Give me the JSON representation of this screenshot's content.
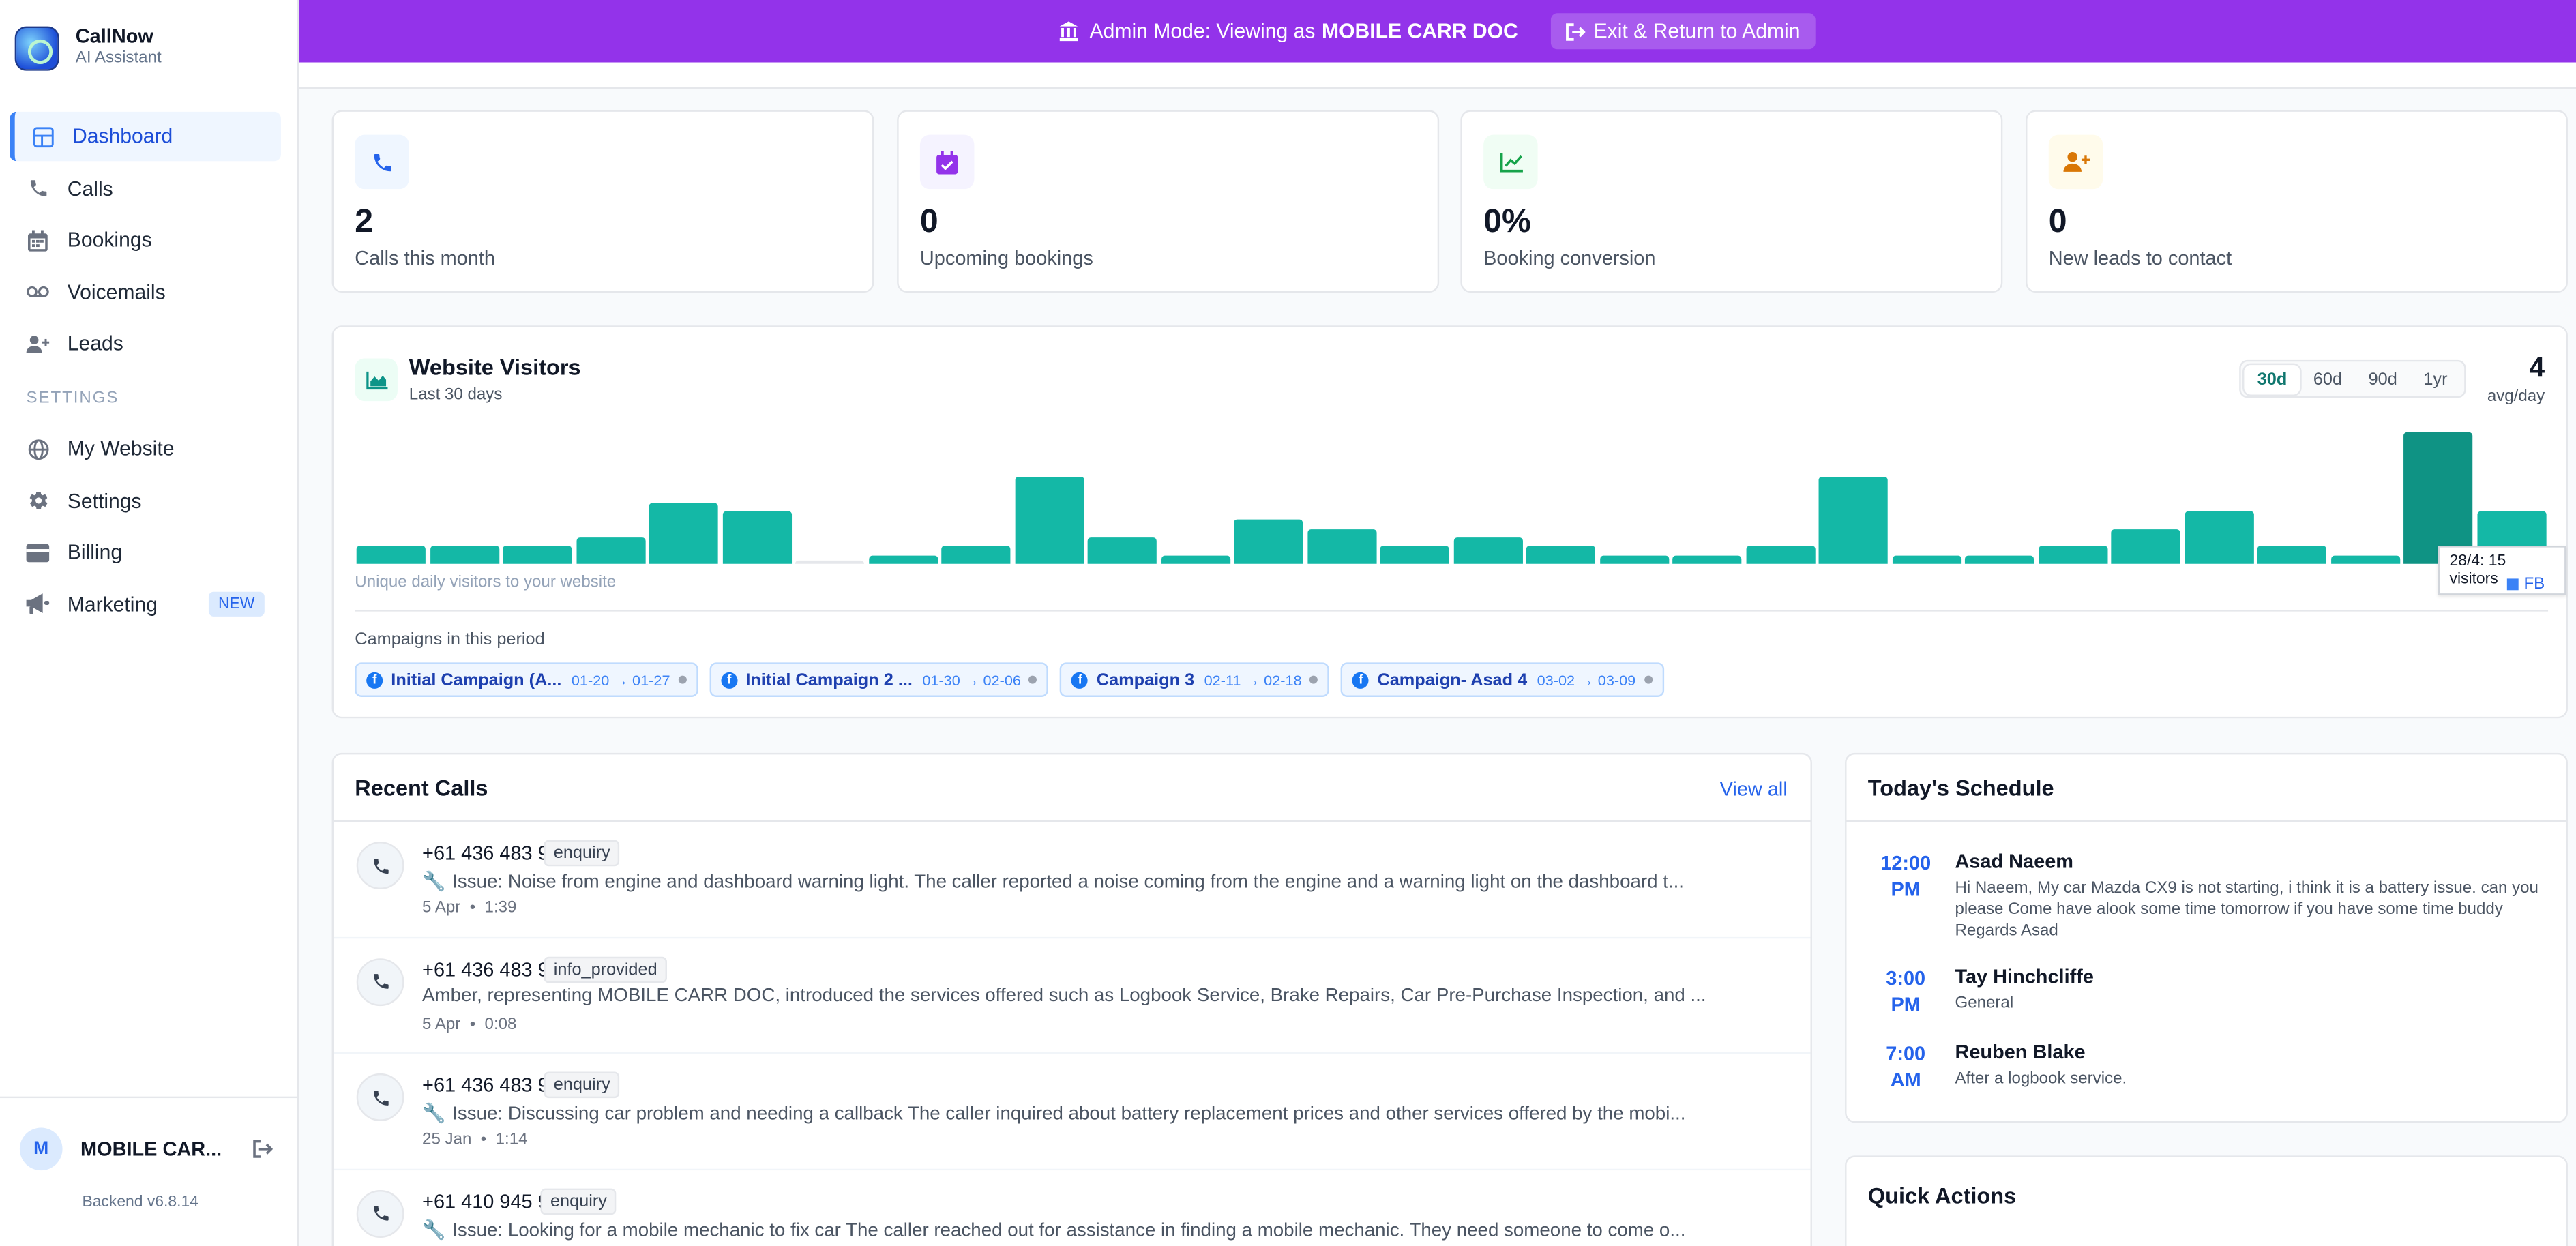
{
  "brand": {
    "name": "CallNow",
    "subtitle": "AI Assistant"
  },
  "nav": {
    "items": [
      {
        "label": "Dashboard",
        "icon": "grid-icon"
      },
      {
        "label": "Calls",
        "icon": "phone-icon"
      },
      {
        "label": "Bookings",
        "icon": "calendar-icon"
      },
      {
        "label": "Voicemails",
        "icon": "voicemail-icon"
      },
      {
        "label": "Leads",
        "icon": "user-plus-icon"
      }
    ],
    "settings_section": "SETTINGS",
    "settings_items": [
      {
        "label": "My Website",
        "icon": "globe-icon"
      },
      {
        "label": "Settings",
        "icon": "gear-icon"
      },
      {
        "label": "Billing",
        "icon": "credit-card-icon"
      },
      {
        "label": "Marketing",
        "icon": "megaphone-icon",
        "badge": "NEW"
      }
    ]
  },
  "user": {
    "initial": "M",
    "name": "MOBILE CAR...",
    "version": "Backend v6.8.14"
  },
  "admin_banner": {
    "prefix": "Admin Mode: Viewing as",
    "account": "MOBILE CARR DOC",
    "exit_label": "Exit & Return to Admin"
  },
  "stats": [
    {
      "value": "2",
      "label": "Calls this month",
      "icon": "phone-icon",
      "color": "#2563eb",
      "bg": "#eff6ff"
    },
    {
      "value": "0",
      "label": "Upcoming bookings",
      "icon": "calendar-check-icon",
      "color": "#9333ea",
      "bg": "#f5f3ff"
    },
    {
      "value": "0%",
      "label": "Booking conversion",
      "icon": "trend-chart-icon",
      "color": "#16a34a",
      "bg": "#f0fdf4"
    },
    {
      "value": "0",
      "label": "New leads to contact",
      "icon": "user-plus-icon",
      "color": "#d97706",
      "bg": "#fffbeb"
    }
  ],
  "visitors": {
    "title": "Website Visitors",
    "subtitle": "Last 30 days",
    "ranges": [
      "30d",
      "60d",
      "90d",
      "1yr"
    ],
    "selected_range": "30d",
    "avg_value": "4",
    "avg_label": "avg/day",
    "caption": "Unique daily visitors to your website",
    "tooltip": "28/4: 15 visitors",
    "legend": "FB",
    "campaigns_title": "Campaigns in this period",
    "campaigns": [
      {
        "name": "Initial Campaign (A...",
        "dates": "01-20 → 01-27"
      },
      {
        "name": "Initial Campaign 2 ...",
        "dates": "01-30 → 02-06"
      },
      {
        "name": "Campaign 3",
        "dates": "02-11 → 02-18"
      },
      {
        "name": "Campaign- Asad 4",
        "dates": "03-02 → 03-09"
      }
    ]
  },
  "chart_data": {
    "type": "bar",
    "values": [
      2,
      2,
      2,
      3,
      7,
      6,
      0,
      1,
      2,
      10,
      3,
      1,
      5,
      4,
      2,
      3,
      2,
      1,
      1,
      2,
      10,
      1,
      1,
      2,
      4,
      6,
      2,
      1,
      15,
      6
    ],
    "highlight_index": 28,
    "ylim": [
      0,
      15
    ],
    "grid": false,
    "legend_position": "bottom-right",
    "xlabel": "",
    "ylabel": ""
  },
  "recent_calls": {
    "title": "Recent Calls",
    "view_all": "View all",
    "items": [
      {
        "number": "+61 436 483 995",
        "tag": "enquiry",
        "text": "Issue: Noise from engine and dashboard warning light. The caller reported a noise coming from the engine and a warning light on the dashboard t...",
        "date": "5 Apr",
        "duration": "1:39",
        "issue": true
      },
      {
        "number": "+61 436 483 995",
        "tag": "info_provided",
        "text": "Amber, representing MOBILE CARR DOC, introduced the services offered such as Logbook Service, Brake Repairs, Car Pre-Purchase Inspection, and ...",
        "date": "5 Apr",
        "duration": "0:08",
        "issue": false
      },
      {
        "number": "+61 436 483 995",
        "tag": "enquiry",
        "text": "Issue: Discussing car problem and needing a callback The caller inquired about battery replacement prices and other services offered by the mobi...",
        "date": "25 Jan",
        "duration": "1:14",
        "issue": true
      },
      {
        "number": "+61 410 945 976",
        "tag": "enquiry",
        "text": "Issue: Looking for a mobile mechanic to fix car The caller reached out for assistance in finding a mobile mechanic. They need someone to come o...",
        "date": "",
        "duration": "",
        "issue": true
      }
    ]
  },
  "schedule": {
    "title": "Today's Schedule",
    "items": [
      {
        "time_h": "12:00",
        "time_p": "PM",
        "name": "Asad Naeem",
        "note": "Hi Naeem, My car Mazda CX9 is not starting, i think it is a battery issue. can you please Come have alook some time tomorrow if you have some time buddy Regards Asad"
      },
      {
        "time_h": "3:00",
        "time_p": "PM",
        "name": "Tay Hinchcliffe",
        "note": "General"
      },
      {
        "time_h": "7:00",
        "time_p": "AM",
        "name": "Reuben Blake",
        "note": "After a logbook service."
      }
    ]
  },
  "quick_actions": {
    "title": "Quick Actions"
  },
  "colors": {
    "accent": "#3b82f6",
    "banner": "#9333ea",
    "bar": "#14b8a6",
    "bar_highlight": "#0f9384"
  }
}
